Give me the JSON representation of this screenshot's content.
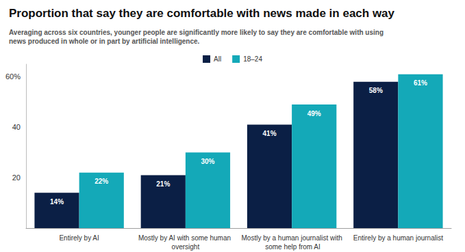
{
  "chart_data": {
    "type": "bar",
    "title": "Proportion that say they are comfortable with news made in each way",
    "subtitle": "Averaging across six countries, younger people are significantly more likely to say they are comfortable with using news produced in whole or in part by artificial intelligence.",
    "categories": [
      "Entirely by AI",
      "Mostly by AI with some human oversight",
      "Mostly by a human journalist with some help from AI",
      "Entirely by a human journalist"
    ],
    "series": [
      {
        "name": "All",
        "color": "#0b1f45",
        "values": [
          14,
          21,
          41,
          58
        ],
        "value_labels": [
          "14%",
          "21%",
          "41%",
          "58%"
        ]
      },
      {
        "name": "18–24",
        "color": "#14a9b8",
        "values": [
          22,
          30,
          49,
          61
        ],
        "value_labels": [
          "22%",
          "30%",
          "49%",
          "61%"
        ]
      }
    ],
    "ylim": [
      0,
      65
    ],
    "yticks": [
      20,
      40,
      {
        "value": 60,
        "label": "60%"
      }
    ],
    "grid": false,
    "legend": "top",
    "data_labels": true
  }
}
